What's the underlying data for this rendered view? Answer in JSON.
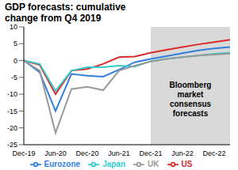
{
  "chart_data": {
    "type": "line",
    "title": "GDP forecasts: cumulative change from Q4 2019",
    "categories": [
      "Dec-19",
      null,
      "Jun-20",
      null,
      "Dec-20",
      null,
      "Jun-21",
      null,
      "Dec-21",
      null,
      "Jun-22",
      null,
      "Dec-22",
      null
    ],
    "series": [
      {
        "name": "Eurozone",
        "color": "#2f7fe0",
        "values": [
          0,
          -3.5,
          -15,
          -4,
          -4.5,
          -4.8,
          -2.7,
          -0.5,
          0.5,
          1.3,
          2.2,
          3,
          3.6,
          4
        ]
      },
      {
        "name": "US",
        "color": "#d92b2b",
        "values": [
          0,
          -1.3,
          -10,
          -3,
          -2.5,
          -1,
          1,
          1.2,
          2.3,
          3.2,
          4,
          4.8,
          5.5,
          6.2
        ]
      },
      {
        "name": "Japan",
        "color": "#33cccc",
        "values": [
          0,
          -1,
          -9,
          -3,
          -2,
          -2,
          -1.5,
          -1.8,
          -0.2,
          0.5,
          1,
          1.5,
          2,
          2.3
        ]
      },
      {
        "name": "UK",
        "color": "#999999",
        "values": [
          0,
          -3,
          -21.5,
          -8.5,
          -7.8,
          -8.8,
          -3,
          -1.5,
          -0.3,
          0.5,
          1,
          1.5,
          1.8,
          2.1
        ]
      }
    ],
    "ylim": [
      -25,
      10
    ],
    "yticks": [
      -25,
      -20,
      -15,
      -10,
      -5,
      0,
      5,
      10
    ],
    "grid": false,
    "legend": "bottom",
    "annotations": [
      {
        "text": "Bloomberg market consensus forecasts",
        "x": "Dec-21"
      }
    ]
  }
}
